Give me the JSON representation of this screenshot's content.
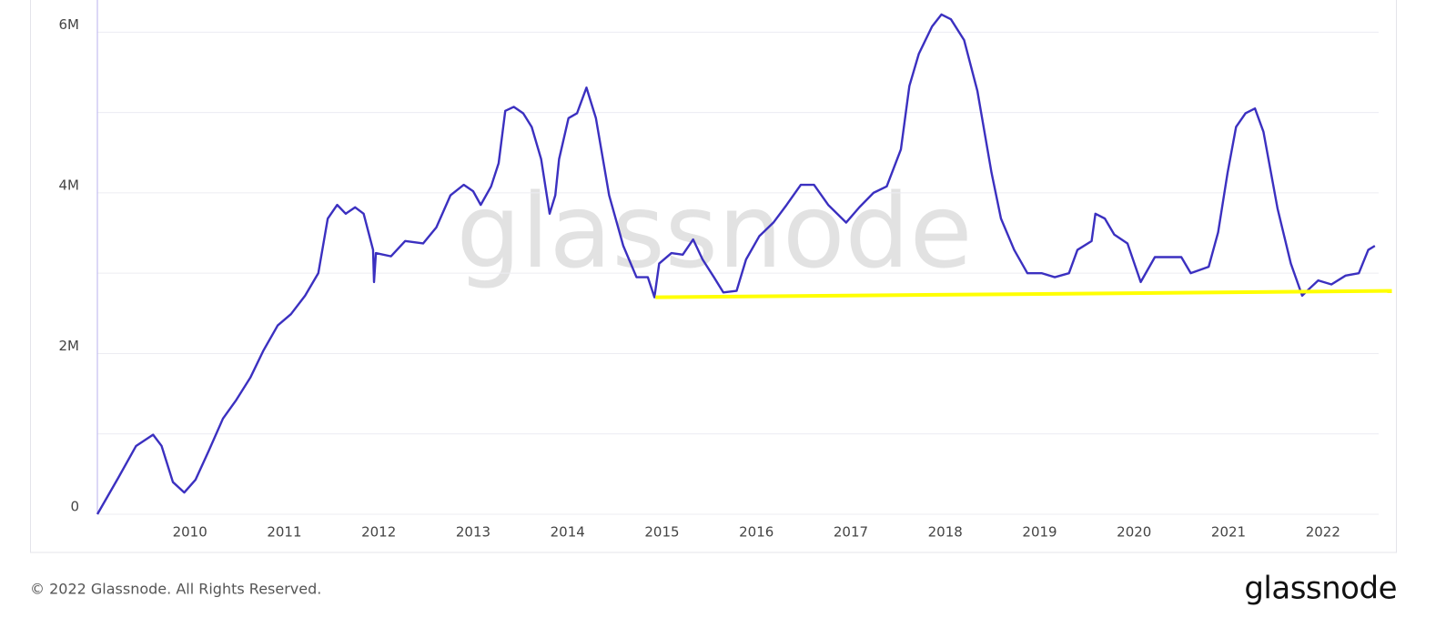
{
  "chart_data": {
    "type": "line",
    "watermark": "glassnode",
    "footer": "© 2022 Glassnode. All Rights Reserved.",
    "logo": "glassnode",
    "xlim": [
      2009.02,
      2022.59
    ],
    "xticks": [
      2010,
      2011,
      2012,
      2013,
      2014,
      2015,
      2016,
      2017,
      2018,
      2019,
      2020,
      2021,
      2022
    ],
    "ylim": [
      0,
      6400000
    ],
    "yticks": [
      0,
      {
        "value": 2000000,
        "label": "2M"
      },
      {
        "value": 4000000,
        "label": "4M"
      },
      {
        "value": 6000000,
        "label": "6M"
      }
    ],
    "yminor_ticks": [
      1000000,
      3000000,
      5000000
    ],
    "grid": true,
    "series": [
      {
        "color": "#3b30c0",
        "x": [
          2009.02,
          2009.24,
          2009.43,
          2009.61,
          2009.7,
          2009.82,
          2009.94,
          2010.06,
          2010.2,
          2010.35,
          2010.49,
          2010.64,
          2010.78,
          2010.93,
          2011.07,
          2011.22,
          2011.36,
          2011.46,
          2011.56,
          2011.65,
          2011.75,
          2011.84,
          2011.94,
          2011.95,
          2011.97,
          2012.13,
          2012.28,
          2012.47,
          2012.61,
          2012.76,
          2012.9,
          2013.0,
          2013.08,
          2013.19,
          2013.27,
          2013.34,
          2013.43,
          2013.53,
          2013.62,
          2013.72,
          2013.81,
          2013.87,
          2013.91,
          2014.01,
          2014.1,
          2014.2,
          2014.3,
          2014.44,
          2014.59,
          2014.73,
          2014.85,
          2014.92,
          2014.97,
          2015.1,
          2015.22,
          2015.33,
          2015.43,
          2015.55,
          2015.65,
          2015.79,
          2015.89,
          2016.03,
          2016.18,
          2016.32,
          2016.47,
          2016.61,
          2016.76,
          2016.95,
          2017.09,
          2017.24,
          2017.38,
          2017.53,
          2017.62,
          2017.72,
          2017.86,
          2017.96,
          2018.06,
          2018.2,
          2018.34,
          2018.49,
          2018.59,
          2018.73,
          2018.87,
          2019.02,
          2019.16,
          2019.31,
          2019.4,
          2019.55,
          2019.59,
          2019.69,
          2019.79,
          2019.93,
          2020.07,
          2020.22,
          2020.36,
          2020.5,
          2020.6,
          2020.79,
          2020.89,
          2020.99,
          2021.08,
          2021.18,
          2021.28,
          2021.37,
          2021.52,
          2021.66,
          2021.78,
          2021.85,
          2021.95,
          2022.09,
          2022.24,
          2022.38,
          2022.48,
          2022.55
        ],
        "values": [
          0,
          450000,
          850000,
          990000,
          850000,
          400000,
          270000,
          430000,
          790000,
          1190000,
          1420000,
          1700000,
          2040000,
          2350000,
          2490000,
          2720000,
          3000000,
          3680000,
          3850000,
          3740000,
          3820000,
          3740000,
          3290000,
          2890000,
          3250000,
          3210000,
          3400000,
          3370000,
          3570000,
          3970000,
          4100000,
          4020000,
          3850000,
          4080000,
          4370000,
          5020000,
          5070000,
          4990000,
          4820000,
          4420000,
          3740000,
          3970000,
          4420000,
          4930000,
          4990000,
          5310000,
          4930000,
          3970000,
          3340000,
          2950000,
          2950000,
          2700000,
          3120000,
          3250000,
          3230000,
          3420000,
          3170000,
          2950000,
          2760000,
          2780000,
          3170000,
          3460000,
          3630000,
          3850000,
          4100000,
          4100000,
          3850000,
          3630000,
          3820000,
          4000000,
          4080000,
          4540000,
          5330000,
          5730000,
          6070000,
          6220000,
          6160000,
          5900000,
          5270000,
          4250000,
          3680000,
          3290000,
          3000000,
          3000000,
          2950000,
          3000000,
          3290000,
          3400000,
          3740000,
          3680000,
          3480000,
          3370000,
          2890000,
          3200000,
          3200000,
          3200000,
          3000000,
          3080000,
          3510000,
          4250000,
          4820000,
          4990000,
          5050000,
          4760000,
          3800000,
          3120000,
          2720000,
          2800000,
          2910000,
          2860000,
          2970000,
          3000000,
          3290000,
          3340000
        ]
      },
      {
        "color": "#ffff00",
        "x": [
          2014.93,
          2022.73
        ],
        "values": [
          2700000,
          2780000
        ]
      }
    ]
  }
}
